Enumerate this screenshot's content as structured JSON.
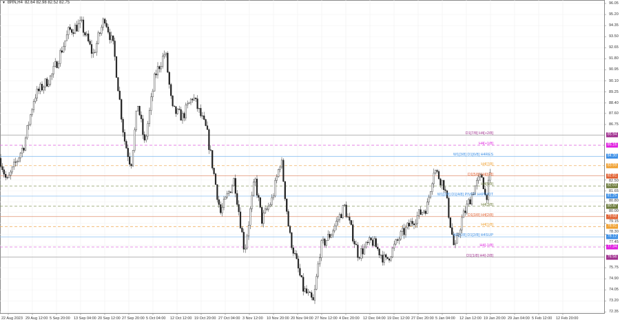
{
  "header": {
    "symbol": "BRN,H4",
    "ohlc": "82.64 82.98 82.52 82.75"
  },
  "price_axis": {
    "min": 72.0,
    "max": 96.3,
    "labels": [
      "96.05",
      "95.20",
      "94.35",
      "93.50",
      "92.65",
      "91.80",
      "90.95",
      "90.10",
      "89.25",
      "88.40",
      "87.60",
      "86.75",
      "82.50",
      "81.65",
      "80.80",
      "80.00",
      "79.15",
      "78.30",
      "77.45",
      "75.75",
      "74.90",
      "74.05",
      "73.20",
      "72.35"
    ]
  },
  "time_axis": {
    "labels": [
      "22 Aug 2023",
      "29 Aug 12:00",
      "5 Sep 20:00",
      "13 Sep 04:00",
      "20 Sep 12:00",
      "27 Sep 20:00",
      "5 Oct 04:00",
      "12 Oct 12:00",
      "19 Oct 20:00",
      "27 Oct 04:00",
      "3 Nov 12:00",
      "10 Nov 20:00",
      "20 Nov 04:00",
      "27 Nov 12:00",
      "4 Dec 20:00",
      "12 Dec 04:00",
      "19 Dec 12:00",
      "27 Dec 20:00",
      "5 Jan 04:00",
      "12 Jan 12:00",
      "19 Jan 20:00",
      "29 Jan 04:00",
      "5 Feb 12:00",
      "12 Feb 20:00"
    ]
  },
  "levels": [
    {
      "label": "D1[7/8] H4[+2/8]",
      "price": "85.94",
      "color": "#a0308f",
      "line": "#9a9a9a",
      "style": "solid"
    },
    {
      "label": "H4[+1/8]",
      "price": "85.16",
      "color": "#e020e0",
      "line": "#e070e0",
      "style": "dash"
    },
    {
      "label": "W1[3/8] D1[6/8] H4RES",
      "price": "84.30",
      "color": "#3a8ee6",
      "line": "#8cc0f0",
      "style": "solid"
    },
    {
      "label": "H4[7/8]",
      "price": "83.59",
      "color": "#f0a030",
      "line": "#f0b060",
      "style": "dash"
    },
    {
      "label": "D1[5/8] H4[6/8]",
      "price": "82.81",
      "color": "#e06030",
      "line": "#e09070",
      "style": "solid"
    },
    {
      "label": "H4[5/8]",
      "price": "82.03",
      "color": "#6b7a3a",
      "line": "#8a9a60",
      "style": "dash"
    },
    {
      "label": "W1[2/8] D1[4/8] PIVOT H4PIVOT",
      "price": "81.25",
      "color": "#3a8ee6",
      "line": "#8cc0f0",
      "style": "solid"
    },
    {
      "label": "H4[3/8]",
      "price": "80.47",
      "color": "#6b7a3a",
      "line": "#8a9a60",
      "style": "dash"
    },
    {
      "label": "D1[3/8] H4[2/8]",
      "price": "79.68",
      "color": "#e06030",
      "line": "#e09070",
      "style": "solid"
    },
    {
      "label": "H4[1/8]",
      "price": "78.91",
      "color": "#f0a030",
      "line": "#f0b060",
      "style": "dash"
    },
    {
      "label": "W1[1/8] D1[2/8] H4SUP",
      "price": "78.12",
      "color": "#3a8ee6",
      "line": "#8cc0f0",
      "style": "solid"
    },
    {
      "label": "H4[-1/8]",
      "price": "77.34",
      "color": "#e020e0",
      "line": "#e070e0",
      "style": "dash"
    },
    {
      "label": "D1[1/8] H4[-2/8]",
      "price": "76.56",
      "color": "#a0308f",
      "line": "#9a9a9a",
      "style": "solid"
    }
  ],
  "price_path": [
    84.16,
    82.31,
    85.21,
    88.92,
    90.5,
    93.94,
    94.46,
    92.09,
    94.99,
    92.61,
    85.74,
    83.63,
    88.39,
    85.21,
    90.5,
    92.35,
    87.86,
    87.33,
    88.92,
    86.27,
    79.93,
    82.57,
    77.02,
    82.57,
    79.4,
    80.99,
    84.16,
    78.34,
    74.12,
    73.06,
    77.29,
    78.34,
    80.46,
    76.76,
    77.81,
    76.23,
    78.08,
    79.4,
    80.46,
    83.37,
    82.04,
    77.02,
    79.4,
    82.04,
    82.84,
    80.99,
    83.1
  ]
}
